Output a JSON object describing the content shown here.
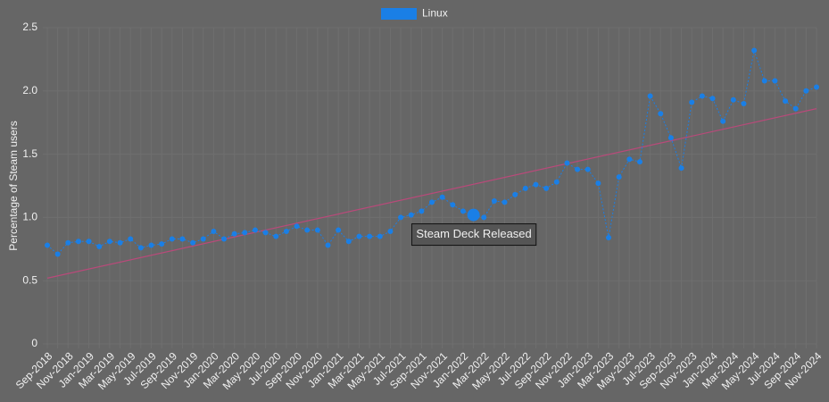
{
  "chart_data": {
    "type": "line",
    "y_label": "Percentage of Steam users",
    "categories": [
      "Sep-2018",
      null,
      "Nov-2018",
      null,
      "Jan-2019",
      null,
      "Mar-2019",
      null,
      "May-2019",
      null,
      "Jul-2019",
      null,
      "Sep-2019",
      null,
      "Nov-2019",
      null,
      "Jan-2020",
      null,
      "Mar-2020",
      null,
      "May-2020",
      null,
      "Jul-2020",
      null,
      "Sep-2020",
      null,
      "Nov-2020",
      null,
      "Jan-2021",
      null,
      "Mar-2021",
      null,
      "May-2021",
      null,
      "Jul-2021",
      null,
      "Sep-2021",
      null,
      "Nov-2021",
      null,
      "Jan-2022",
      null,
      "Mar-2022",
      null,
      "May-2022",
      null,
      "Jul-2022",
      null,
      "Sep-2022",
      null,
      "Nov-2022",
      null,
      "Jan-2023",
      null,
      "Mar-2023",
      null,
      "May-2023",
      null,
      "Jul-2023",
      null,
      "Sep-2023",
      null,
      "Nov-2023",
      null,
      "Jan-2024",
      null,
      "Mar-2024",
      null,
      "May-2024",
      null,
      "Jul-2024",
      null,
      "Sep-2024",
      null,
      "Nov-2024"
    ],
    "series": [
      {
        "name": "Linux",
        "color": "#1a7fe6",
        "values": [
          0.78,
          0.71,
          0.8,
          0.81,
          0.81,
          0.77,
          0.81,
          0.8,
          0.83,
          0.76,
          0.78,
          0.79,
          0.83,
          0.83,
          0.8,
          0.83,
          0.89,
          0.83,
          0.87,
          0.88,
          0.9,
          0.88,
          0.85,
          0.89,
          0.93,
          0.9,
          0.9,
          0.78,
          0.9,
          0.81,
          0.85,
          0.85,
          0.85,
          0.89,
          1.0,
          1.02,
          1.05,
          1.12,
          1.16,
          1.1,
          1.05,
          1.02,
          1.0,
          1.13,
          1.12,
          1.18,
          1.23,
          1.26,
          1.23,
          1.28,
          1.43,
          1.38,
          1.38,
          1.27,
          0.84,
          1.32,
          1.46,
          1.44,
          1.96,
          1.82,
          1.63,
          1.39,
          1.91,
          1.96,
          1.94,
          1.76,
          1.93,
          1.9,
          2.32,
          2.08,
          2.08,
          1.92,
          1.86,
          2.0,
          2.03
        ]
      }
    ],
    "trendline": {
      "color": "#b94a7a",
      "values": [
        0.52,
        1.86
      ]
    },
    "annotations": [
      {
        "label": "Steam Deck Released",
        "point": 41
      }
    ],
    "ylim": [
      0,
      2.5
    ],
    "yticks": [
      0,
      {
        "value": 0.5,
        "label": "0.5"
      },
      {
        "value": 1,
        "label": "1.0"
      },
      {
        "value": 1.5,
        "label": "1.5"
      },
      {
        "value": 2,
        "label": "2.0"
      },
      {
        "value": 2.5,
        "label": "2.5"
      }
    ],
    "grid": true,
    "legend": "top"
  }
}
